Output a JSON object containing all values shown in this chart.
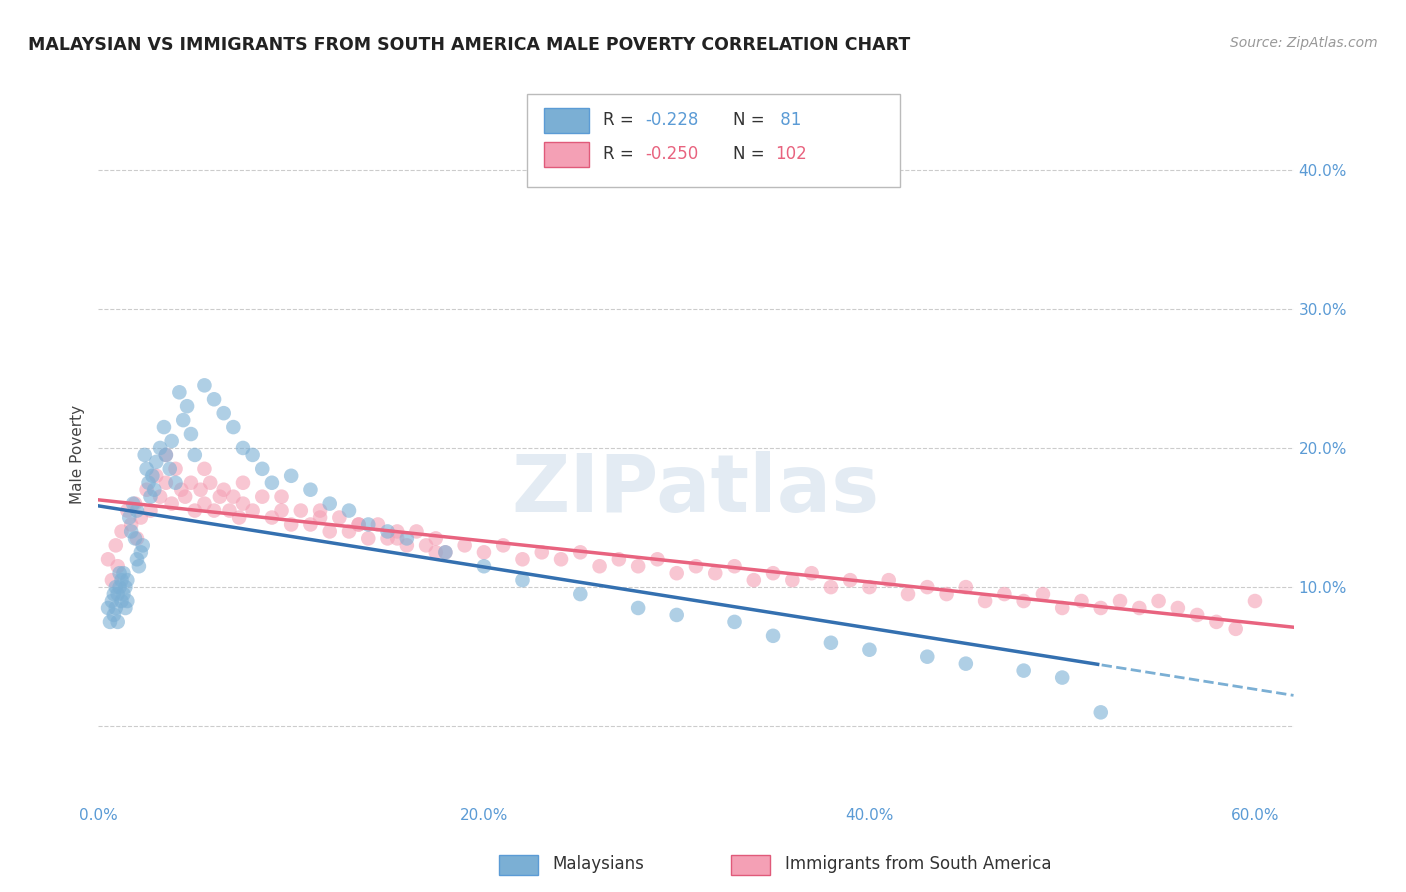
{
  "title": "MALAYSIAN VS IMMIGRANTS FROM SOUTH AMERICA MALE POVERTY CORRELATION CHART",
  "source": "Source: ZipAtlas.com",
  "ylabel": "Male Poverty",
  "xlim": [
    0.0,
    0.62
  ],
  "ylim": [
    -0.055,
    0.445
  ],
  "yticks": [
    0.0,
    0.1,
    0.2,
    0.3,
    0.4
  ],
  "ytick_labels": [
    "",
    "10.0%",
    "20.0%",
    "30.0%",
    "40.0%"
  ],
  "xticks": [
    0.0,
    0.1,
    0.2,
    0.3,
    0.4,
    0.5,
    0.6
  ],
  "xtick_labels": [
    "0.0%",
    "",
    "20.0%",
    "",
    "40.0%",
    "",
    "60.0%"
  ],
  "background_color": "#ffffff",
  "grid_color": "#cccccc",
  "blue_color": "#7bafd4",
  "blue_line_color": "#3470b0",
  "pink_color": "#f4a0b5",
  "pink_line_color": "#e8637f",
  "blue_scatter_x": [
    0.005,
    0.006,
    0.007,
    0.008,
    0.008,
    0.009,
    0.009,
    0.01,
    0.01,
    0.011,
    0.011,
    0.012,
    0.012,
    0.013,
    0.013,
    0.014,
    0.014,
    0.015,
    0.015,
    0.016,
    0.017,
    0.018,
    0.019,
    0.02,
    0.02,
    0.021,
    0.022,
    0.023,
    0.024,
    0.025,
    0.026,
    0.027,
    0.028,
    0.029,
    0.03,
    0.032,
    0.034,
    0.035,
    0.037,
    0.038,
    0.04,
    0.042,
    0.044,
    0.046,
    0.048,
    0.05,
    0.055,
    0.06,
    0.065,
    0.07,
    0.075,
    0.08,
    0.085,
    0.09,
    0.1,
    0.11,
    0.12,
    0.13,
    0.14,
    0.15,
    0.16,
    0.18,
    0.2,
    0.22,
    0.25,
    0.28,
    0.3,
    0.33,
    0.35,
    0.38,
    0.4,
    0.43,
    0.45,
    0.48,
    0.5,
    0.52
  ],
  "blue_scatter_y": [
    0.085,
    0.075,
    0.09,
    0.08,
    0.095,
    0.085,
    0.1,
    0.075,
    0.095,
    0.1,
    0.11,
    0.09,
    0.105,
    0.095,
    0.11,
    0.085,
    0.1,
    0.09,
    0.105,
    0.15,
    0.14,
    0.16,
    0.135,
    0.12,
    0.155,
    0.115,
    0.125,
    0.13,
    0.195,
    0.185,
    0.175,
    0.165,
    0.18,
    0.17,
    0.19,
    0.2,
    0.215,
    0.195,
    0.185,
    0.205,
    0.175,
    0.24,
    0.22,
    0.23,
    0.21,
    0.195,
    0.245,
    0.235,
    0.225,
    0.215,
    0.2,
    0.195,
    0.185,
    0.175,
    0.18,
    0.17,
    0.16,
    0.155,
    0.145,
    0.14,
    0.135,
    0.125,
    0.115,
    0.105,
    0.095,
    0.085,
    0.08,
    0.075,
    0.065,
    0.06,
    0.055,
    0.05,
    0.045,
    0.04,
    0.035,
    0.01
  ],
  "pink_scatter_x": [
    0.005,
    0.007,
    0.009,
    0.01,
    0.012,
    0.015,
    0.017,
    0.019,
    0.02,
    0.022,
    0.025,
    0.027,
    0.03,
    0.032,
    0.035,
    0.038,
    0.04,
    0.043,
    0.045,
    0.048,
    0.05,
    0.053,
    0.055,
    0.058,
    0.06,
    0.063,
    0.065,
    0.068,
    0.07,
    0.073,
    0.075,
    0.08,
    0.085,
    0.09,
    0.095,
    0.1,
    0.105,
    0.11,
    0.115,
    0.12,
    0.125,
    0.13,
    0.135,
    0.14,
    0.145,
    0.15,
    0.155,
    0.16,
    0.165,
    0.17,
    0.175,
    0.18,
    0.19,
    0.2,
    0.21,
    0.22,
    0.23,
    0.24,
    0.25,
    0.26,
    0.27,
    0.28,
    0.29,
    0.3,
    0.31,
    0.32,
    0.33,
    0.34,
    0.35,
    0.36,
    0.37,
    0.38,
    0.39,
    0.4,
    0.41,
    0.42,
    0.43,
    0.44,
    0.45,
    0.46,
    0.47,
    0.48,
    0.49,
    0.5,
    0.51,
    0.52,
    0.53,
    0.54,
    0.55,
    0.56,
    0.57,
    0.58,
    0.59,
    0.6,
    0.035,
    0.055,
    0.075,
    0.095,
    0.115,
    0.135,
    0.155,
    0.175
  ],
  "pink_scatter_y": [
    0.12,
    0.105,
    0.13,
    0.115,
    0.14,
    0.155,
    0.145,
    0.16,
    0.135,
    0.15,
    0.17,
    0.155,
    0.18,
    0.165,
    0.175,
    0.16,
    0.185,
    0.17,
    0.165,
    0.175,
    0.155,
    0.17,
    0.16,
    0.175,
    0.155,
    0.165,
    0.17,
    0.155,
    0.165,
    0.15,
    0.16,
    0.155,
    0.165,
    0.15,
    0.155,
    0.145,
    0.155,
    0.145,
    0.15,
    0.14,
    0.15,
    0.14,
    0.145,
    0.135,
    0.145,
    0.135,
    0.14,
    0.13,
    0.14,
    0.13,
    0.135,
    0.125,
    0.13,
    0.125,
    0.13,
    0.12,
    0.125,
    0.12,
    0.125,
    0.115,
    0.12,
    0.115,
    0.12,
    0.11,
    0.115,
    0.11,
    0.115,
    0.105,
    0.11,
    0.105,
    0.11,
    0.1,
    0.105,
    0.1,
    0.105,
    0.095,
    0.1,
    0.095,
    0.1,
    0.09,
    0.095,
    0.09,
    0.095,
    0.085,
    0.09,
    0.085,
    0.09,
    0.085,
    0.09,
    0.085,
    0.08,
    0.075,
    0.07,
    0.09,
    0.195,
    0.185,
    0.175,
    0.165,
    0.155,
    0.145,
    0.135,
    0.125
  ]
}
